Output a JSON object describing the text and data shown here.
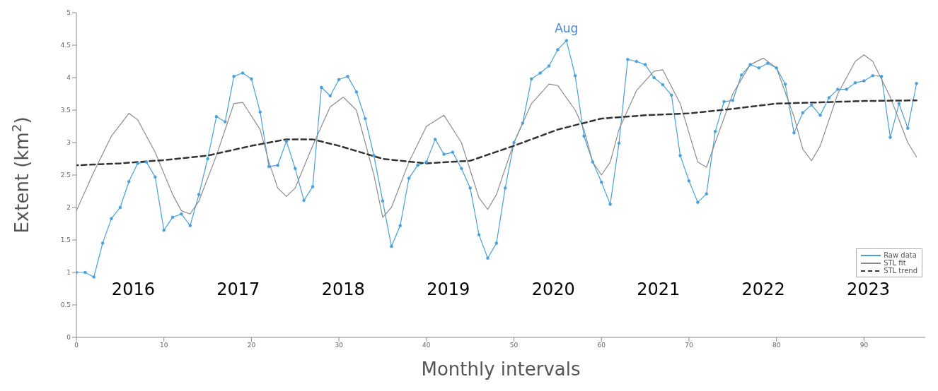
{
  "chart_data": {
    "type": "line",
    "xlabel": "Monthly intervals",
    "ylabel": "Extent (km$^{2}$)",
    "xlim": [
      0,
      97
    ],
    "ylim": [
      0,
      5
    ],
    "xticks": [
      0,
      10,
      20,
      30,
      40,
      50,
      60,
      70,
      80,
      90
    ],
    "yticks": [
      0,
      0.5,
      1,
      1.5,
      2,
      2.5,
      3,
      3.5,
      4,
      4.5,
      5
    ],
    "grid": false,
    "legend": "bottom right",
    "annotations": [
      {
        "text": "Aug",
        "x": 56,
        "y": 4.57
      },
      "2016",
      "2017",
      "2018",
      "2019",
      "2020",
      "2021",
      "2022",
      "2023"
    ],
    "series": [
      {
        "name": "Raw data",
        "color": "#4a9fd8",
        "marker": "circle",
        "line_style": "solid",
        "x": [
          0,
          1,
          2,
          3,
          4,
          5,
          6,
          7,
          8,
          9,
          10,
          11,
          12,
          13,
          14,
          15,
          16,
          17,
          18,
          19,
          20,
          21,
          22,
          23,
          24,
          25,
          26,
          27,
          28,
          29,
          30,
          31,
          32,
          33,
          34,
          35,
          36,
          37,
          38,
          39,
          40,
          41,
          42,
          43,
          44,
          45,
          46,
          47,
          48,
          49,
          50,
          51,
          52,
          53,
          54,
          55,
          56,
          57,
          58,
          59,
          60,
          61,
          62,
          63,
          64,
          65,
          66,
          67,
          68,
          69,
          70,
          71,
          72,
          73,
          74,
          75,
          76,
          77,
          78,
          79,
          80,
          81,
          82,
          83,
          84,
          85,
          86,
          87,
          88,
          89,
          90,
          91,
          92,
          93,
          94,
          95,
          96
        ],
        "values": [
          1.0,
          1.0,
          0.93,
          1.45,
          1.83,
          2.0,
          2.4,
          2.68,
          2.7,
          2.47,
          1.65,
          1.85,
          1.9,
          1.72,
          2.2,
          2.75,
          3.4,
          3.32,
          4.02,
          4.07,
          3.98,
          3.47,
          2.63,
          2.65,
          3.02,
          2.6,
          2.11,
          2.32,
          3.85,
          3.72,
          3.97,
          4.02,
          3.78,
          3.37,
          2.8,
          2.1,
          1.4,
          1.72,
          2.45,
          2.65,
          2.7,
          3.05,
          2.82,
          2.85,
          2.6,
          2.3,
          1.58,
          1.22,
          1.45,
          2.3,
          3.0,
          3.3,
          3.98,
          4.07,
          4.18,
          4.43,
          4.57,
          4.03,
          3.1,
          2.7,
          2.39,
          2.05,
          2.99,
          4.28,
          4.25,
          4.2,
          4.0,
          3.89,
          3.73,
          2.8,
          2.41,
          2.08,
          2.21,
          3.17,
          3.63,
          3.65,
          4.04,
          4.2,
          4.15,
          4.22,
          4.15,
          3.9,
          3.15,
          3.46,
          3.58,
          3.42,
          3.69,
          3.82,
          3.82,
          3.92,
          3.95,
          4.03,
          4.02,
          3.08,
          3.6,
          3.22,
          3.91
        ]
      },
      {
        "name": "STL fit",
        "color": "#8c8c8c",
        "marker": "none",
        "line_style": "solid",
        "x": [
          0,
          2,
          4,
          6,
          7,
          9,
          11,
          12,
          13,
          14,
          16,
          18,
          19,
          21,
          22,
          23,
          24,
          25,
          27,
          29,
          30.5,
          32,
          34,
          35,
          36,
          38,
          40,
          42,
          44,
          46,
          47,
          48,
          50,
          52,
          54,
          55,
          57,
          58,
          59,
          60,
          61,
          62,
          64,
          66,
          67,
          69,
          71,
          72,
          73,
          75,
          77,
          78.5,
          80,
          82,
          83,
          84,
          85,
          87,
          89,
          90,
          91,
          93,
          95,
          96
        ],
        "values": [
          1.95,
          2.55,
          3.1,
          3.45,
          3.35,
          2.85,
          2.2,
          1.95,
          1.9,
          2.1,
          2.8,
          3.6,
          3.62,
          3.2,
          2.7,
          2.3,
          2.17,
          2.3,
          2.95,
          3.55,
          3.7,
          3.5,
          2.5,
          1.85,
          2.0,
          2.7,
          3.25,
          3.42,
          3.0,
          2.15,
          1.97,
          2.2,
          3.0,
          3.6,
          3.9,
          3.88,
          3.5,
          3.2,
          2.7,
          2.5,
          2.7,
          3.2,
          3.8,
          4.1,
          4.12,
          3.6,
          2.7,
          2.62,
          3.0,
          3.75,
          4.2,
          4.3,
          4.15,
          3.4,
          2.9,
          2.72,
          2.95,
          3.75,
          4.25,
          4.35,
          4.25,
          3.7,
          3.0,
          2.78
        ]
      },
      {
        "name": "STL trend",
        "color": "#333333",
        "marker": "none",
        "line_style": "dashed",
        "x": [
          0,
          5,
          10,
          15,
          20,
          24,
          27,
          30,
          35,
          40,
          45,
          50,
          55,
          60,
          65,
          70,
          75,
          80,
          85,
          90,
          96
        ],
        "values": [
          2.65,
          2.68,
          2.73,
          2.8,
          2.95,
          3.05,
          3.05,
          2.95,
          2.75,
          2.68,
          2.72,
          2.95,
          3.2,
          3.37,
          3.42,
          3.45,
          3.52,
          3.6,
          3.62,
          3.64,
          3.65
        ]
      }
    ]
  }
}
